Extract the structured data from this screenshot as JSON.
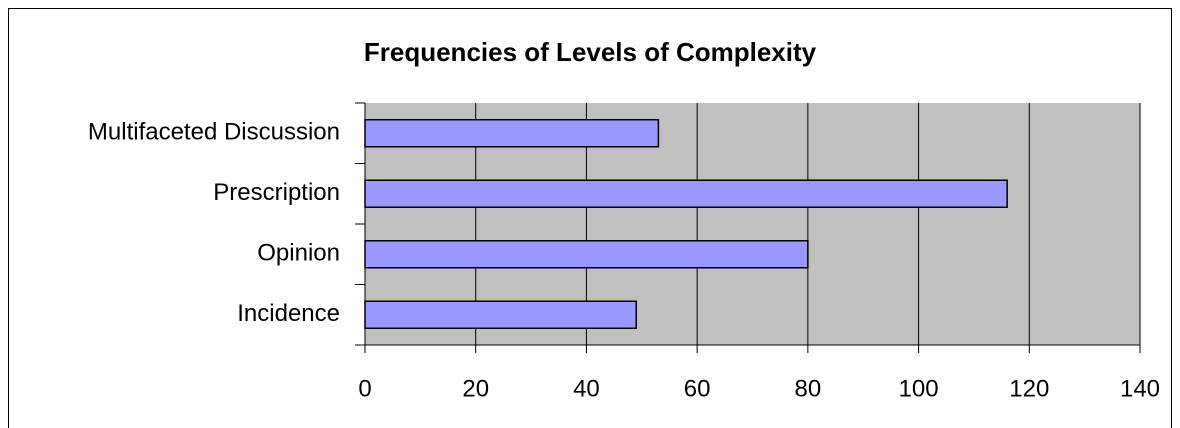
{
  "chart_data": {
    "type": "bar",
    "orientation": "horizontal",
    "title": "Frequencies of Levels of Complexity",
    "categories": [
      "Multifaceted Discussion",
      "Prescription",
      "Opinion",
      "Incidence"
    ],
    "values": [
      53,
      116,
      80,
      49
    ],
    "color": "#9999ff",
    "xlim": [
      0,
      140
    ],
    "xticks": [
      0,
      20,
      40,
      60,
      80,
      100,
      120,
      140
    ],
    "grid": true
  }
}
